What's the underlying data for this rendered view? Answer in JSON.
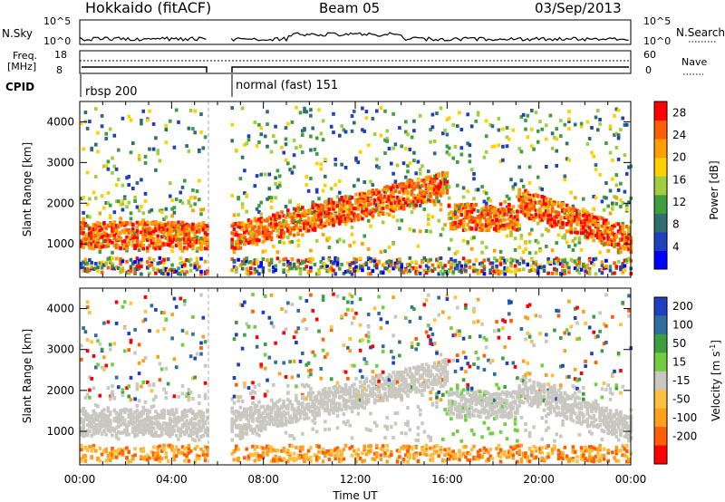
{
  "header": {
    "site": "Hokkaido (fitACF)",
    "beam": "Beam 05",
    "date": "03/Sep/2013"
  },
  "noise_panel": {
    "left_label": "N.Sky",
    "right_label": "N.Search",
    "left_ticks": [
      "10^5",
      "10^0"
    ],
    "right_ticks": [
      "10^5",
      "10^0"
    ]
  },
  "freq_panel": {
    "left_label_1": "Freq.",
    "left_label_2": "[MHz]",
    "right_label": "Nave",
    "left_ticks": [
      "18",
      "8"
    ],
    "right_ticks": [
      "60",
      "0"
    ]
  },
  "cpid": {
    "label": "CPID",
    "segments": [
      {
        "start_h": 0,
        "end_h": 5.5,
        "name": "rbsp 200"
      },
      {
        "start_h": 6.5,
        "end_h": 24,
        "name": "normal (fast) 151"
      }
    ]
  },
  "colors": {
    "power": [
      "#0000ff",
      "#1f3fbf",
      "#2f6f6f",
      "#3f9f3f",
      "#9fcf3f",
      "#ffcf00",
      "#ff9f00",
      "#ff5f00",
      "#ff0000"
    ],
    "velocity": [
      "#1f3fbf",
      "#2f6f9f",
      "#3f9f3f",
      "#6fcf3f",
      "#c8c8c0",
      "#ffbf3f",
      "#ff9f1f",
      "#ff5f00",
      "#ff0000"
    ]
  },
  "chart_data": [
    {
      "type": "heatmap",
      "title": "Hokkaido (fitACF) Beam 05 03/Sep/2013",
      "xlabel": "Time UT",
      "ylabel": "Slant Range [km]",
      "xlim": [
        0,
        24
      ],
      "ylim": [
        180,
        4500
      ],
      "x_ticks": [
        "00:00",
        "04:00",
        "08:00",
        "12:00",
        "16:00",
        "20:00",
        "00:00"
      ],
      "y_ticks": [
        1000,
        2000,
        3000,
        4000
      ],
      "colorbar": {
        "label": "Power [dB]",
        "ticks": [
          4,
          8,
          12,
          16,
          20,
          24,
          28
        ],
        "range": [
          0,
          30
        ]
      },
      "data_gap_hours": [
        5.5,
        6.5
      ],
      "features": [
        {
          "name": "main echo band",
          "time_h": [
            0,
            5.5
          ],
          "range_km": [
            800,
            1600
          ],
          "level_db": 26
        },
        {
          "name": "rising echo band",
          "time_h": [
            6.5,
            16
          ],
          "range_km_start": 1200,
          "range_km_end": 2600,
          "level_db": 24
        },
        {
          "name": "descending echo band",
          "time_h": [
            19,
            24
          ],
          "range_km_start": 2100,
          "range_km_end": 1000,
          "level_db": 22
        }
      ]
    },
    {
      "type": "heatmap",
      "xlabel": "Time UT",
      "ylabel": "Slant Range [km]",
      "xlim": [
        0,
        24
      ],
      "ylim": [
        180,
        4500
      ],
      "x_ticks": [
        "00:00",
        "04:00",
        "08:00",
        "12:00",
        "16:00",
        "20:00",
        "00:00"
      ],
      "y_ticks": [
        1000,
        2000,
        3000,
        4000
      ],
      "colorbar": {
        "label": "Velocity [m s^-1]",
        "ticks": [
          200,
          100,
          50,
          15,
          -15,
          -50,
          -100,
          -200
        ],
        "range": [
          -250,
          250
        ]
      },
      "data_gap_hours": [
        5.5,
        6.5
      ],
      "features": [
        {
          "name": "ground scatter band",
          "time_h": [
            0,
            24
          ],
          "range_km": [
            900,
            2400
          ],
          "velocity": 0
        },
        {
          "name": "positive velocity patch",
          "time_h": [
            15.5,
            19
          ],
          "range_km": [
            800,
            2000
          ],
          "velocity": 50
        }
      ]
    }
  ],
  "labels": {
    "ylabel": "Slant Range [km]",
    "xlabel": "Time UT",
    "power_cb_label": "Power [dB]",
    "velocity_cb_label": "Velocity [m s",
    "velocity_cb_sup": "-1",
    "velocity_cb_end": "]",
    "x_ticks": [
      "00:00",
      "04:00",
      "08:00",
      "12:00",
      "16:00",
      "20:00",
      "00:00"
    ],
    "y_ticks": [
      "1000",
      "2000",
      "3000",
      "4000"
    ],
    "power_ticks": [
      "28",
      "24",
      "20",
      "16",
      "12",
      "8",
      "4"
    ],
    "velocity_ticks": [
      "200",
      "100",
      "50",
      "15",
      "-15",
      "-50",
      "-100",
      "-200"
    ]
  }
}
